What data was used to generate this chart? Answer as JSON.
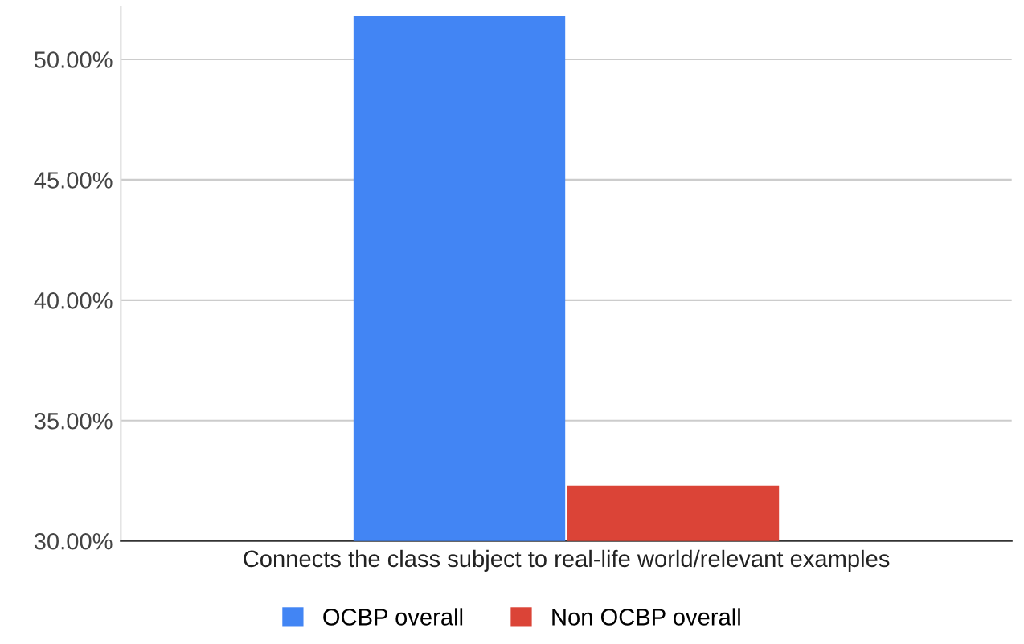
{
  "chart_data": {
    "type": "bar",
    "categories": [
      "Connects the class subject to real-life world/relevant examples"
    ],
    "series": [
      {
        "name": "OCBP overall",
        "color": "#4285f4",
        "values": [
          51.8
        ]
      },
      {
        "name": "Non OCBP overall",
        "color": "#db4437",
        "values": [
          32.3
        ]
      }
    ],
    "ylim": [
      30,
      52.2
    ],
    "yticks": [
      {
        "value": 30,
        "label": "30.00%"
      },
      {
        "value": 35,
        "label": "35.00%"
      },
      {
        "value": 40,
        "label": "40.00%"
      },
      {
        "value": 45,
        "label": "45.00%"
      },
      {
        "value": 50,
        "label": "50.00%"
      }
    ],
    "grid": "y",
    "legend": "bottom"
  }
}
